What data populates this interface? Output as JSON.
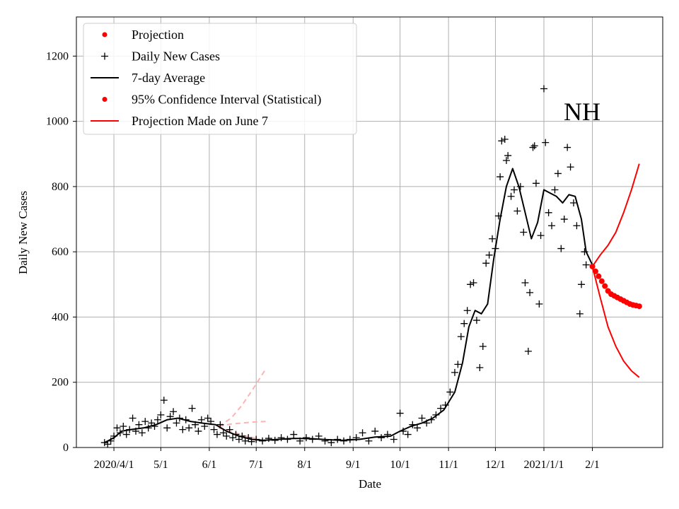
{
  "chart_data": {
    "type": "line",
    "annotation": "NH",
    "xlabel": "Date",
    "ylabel": "Daily New Cases",
    "xlim": [
      "2020-03-08",
      "2021-03-18"
    ],
    "ylim": [
      0,
      1320
    ],
    "grid": true,
    "legend_position": "top-left",
    "x_ticks": [
      {
        "date": "2020-04-01",
        "label": "2020/4/1"
      },
      {
        "date": "2020-05-01",
        "label": "5/1"
      },
      {
        "date": "2020-06-01",
        "label": "6/1"
      },
      {
        "date": "2020-07-01",
        "label": "7/1"
      },
      {
        "date": "2020-08-01",
        "label": "8/1"
      },
      {
        "date": "2020-09-01",
        "label": "9/1"
      },
      {
        "date": "2020-10-01",
        "label": "10/1"
      },
      {
        "date": "2020-11-01",
        "label": "11/1"
      },
      {
        "date": "2020-12-01",
        "label": "12/1"
      },
      {
        "date": "2021-01-01",
        "label": "2021/1/1"
      },
      {
        "date": "2021-02-01",
        "label": "2/1"
      }
    ],
    "y_ticks": [
      0,
      200,
      400,
      600,
      800,
      1000,
      1200
    ],
    "legend": [
      {
        "label": "Projection",
        "marker": "dot",
        "color": "#ff0000"
      },
      {
        "label": "Daily New Cases",
        "marker": "plus",
        "color": "#000000"
      },
      {
        "label": "7-day Average",
        "marker": "line",
        "color": "#000000"
      },
      {
        "label": "95% Confidence Interval (Statistical)",
        "marker": "dot",
        "color": "#ff0000"
      },
      {
        "label": "Projection Made on June 7",
        "marker": "line",
        "color": "#ff0000"
      }
    ],
    "series": [
      {
        "name": "Daily New Cases",
        "style": "plus-marker",
        "color": "#000000",
        "points": [
          [
            "2020-03-26",
            15
          ],
          [
            "2020-03-28",
            10
          ],
          [
            "2020-03-30",
            20
          ],
          [
            "2020-04-01",
            35
          ],
          [
            "2020-04-03",
            60
          ],
          [
            "2020-04-05",
            45
          ],
          [
            "2020-04-07",
            65
          ],
          [
            "2020-04-09",
            40
          ],
          [
            "2020-04-11",
            55
          ],
          [
            "2020-04-13",
            90
          ],
          [
            "2020-04-15",
            50
          ],
          [
            "2020-04-17",
            70
          ],
          [
            "2020-04-19",
            45
          ],
          [
            "2020-04-21",
            80
          ],
          [
            "2020-04-23",
            60
          ],
          [
            "2020-04-25",
            75
          ],
          [
            "2020-04-27",
            65
          ],
          [
            "2020-04-29",
            85
          ],
          [
            "2020-05-01",
            100
          ],
          [
            "2020-05-03",
            145
          ],
          [
            "2020-05-05",
            60
          ],
          [
            "2020-05-07",
            95
          ],
          [
            "2020-05-09",
            110
          ],
          [
            "2020-05-11",
            75
          ],
          [
            "2020-05-13",
            90
          ],
          [
            "2020-05-15",
            55
          ],
          [
            "2020-05-17",
            85
          ],
          [
            "2020-05-19",
            60
          ],
          [
            "2020-05-21",
            120
          ],
          [
            "2020-05-23",
            70
          ],
          [
            "2020-05-25",
            50
          ],
          [
            "2020-05-27",
            85
          ],
          [
            "2020-05-29",
            65
          ],
          [
            "2020-05-31",
            90
          ],
          [
            "2020-06-02",
            80
          ],
          [
            "2020-06-04",
            55
          ],
          [
            "2020-06-06",
            40
          ],
          [
            "2020-06-08",
            70
          ],
          [
            "2020-06-10",
            45
          ],
          [
            "2020-06-12",
            35
          ],
          [
            "2020-06-14",
            55
          ],
          [
            "2020-06-16",
            30
          ],
          [
            "2020-06-18",
            40
          ],
          [
            "2020-06-20",
            25
          ],
          [
            "2020-06-22",
            35
          ],
          [
            "2020-06-24",
            20
          ],
          [
            "2020-06-26",
            30
          ],
          [
            "2020-06-28",
            18
          ],
          [
            "2020-07-01",
            25
          ],
          [
            "2020-07-05",
            20
          ],
          [
            "2020-07-09",
            28
          ],
          [
            "2020-07-13",
            22
          ],
          [
            "2020-07-17",
            30
          ],
          [
            "2020-07-21",
            25
          ],
          [
            "2020-07-25",
            40
          ],
          [
            "2020-07-29",
            20
          ],
          [
            "2020-08-02",
            30
          ],
          [
            "2020-08-06",
            25
          ],
          [
            "2020-08-10",
            35
          ],
          [
            "2020-08-14",
            20
          ],
          [
            "2020-08-18",
            15
          ],
          [
            "2020-08-22",
            25
          ],
          [
            "2020-08-26",
            20
          ],
          [
            "2020-08-30",
            25
          ],
          [
            "2020-09-03",
            30
          ],
          [
            "2020-09-07",
            45
          ],
          [
            "2020-09-11",
            20
          ],
          [
            "2020-09-15",
            50
          ],
          [
            "2020-09-19",
            30
          ],
          [
            "2020-09-23",
            40
          ],
          [
            "2020-09-27",
            25
          ],
          [
            "2020-10-01",
            105
          ],
          [
            "2020-10-03",
            50
          ],
          [
            "2020-10-06",
            40
          ],
          [
            "2020-10-09",
            70
          ],
          [
            "2020-10-12",
            60
          ],
          [
            "2020-10-15",
            90
          ],
          [
            "2020-10-18",
            75
          ],
          [
            "2020-10-21",
            85
          ],
          [
            "2020-10-24",
            100
          ],
          [
            "2020-10-27",
            120
          ],
          [
            "2020-10-30",
            130
          ],
          [
            "2020-11-02",
            170
          ],
          [
            "2020-11-05",
            230
          ],
          [
            "2020-11-07",
            255
          ],
          [
            "2020-11-09",
            340
          ],
          [
            "2020-11-11",
            380
          ],
          [
            "2020-11-13",
            420
          ],
          [
            "2020-11-15",
            500
          ],
          [
            "2020-11-17",
            505
          ],
          [
            "2020-11-19",
            390
          ],
          [
            "2020-11-21",
            245
          ],
          [
            "2020-11-23",
            310
          ],
          [
            "2020-11-25",
            565
          ],
          [
            "2020-11-27",
            590
          ],
          [
            "2020-11-29",
            640
          ],
          [
            "2020-12-01",
            610
          ],
          [
            "2020-12-03",
            710
          ],
          [
            "2020-12-04",
            830
          ],
          [
            "2020-12-05",
            940
          ],
          [
            "2020-12-07",
            945
          ],
          [
            "2020-12-08",
            880
          ],
          [
            "2020-12-09",
            895
          ],
          [
            "2020-12-11",
            770
          ],
          [
            "2020-12-13",
            790
          ],
          [
            "2020-12-15",
            725
          ],
          [
            "2020-12-17",
            800
          ],
          [
            "2020-12-19",
            660
          ],
          [
            "2020-12-20",
            505
          ],
          [
            "2020-12-22",
            295
          ],
          [
            "2020-12-23",
            475
          ],
          [
            "2020-12-25",
            920
          ],
          [
            "2020-12-26",
            925
          ],
          [
            "2020-12-27",
            810
          ],
          [
            "2020-12-29",
            440
          ],
          [
            "2020-12-30",
            650
          ],
          [
            "2021-01-01",
            1100
          ],
          [
            "2021-01-02",
            935
          ],
          [
            "2021-01-04",
            720
          ],
          [
            "2021-01-06",
            680
          ],
          [
            "2021-01-08",
            790
          ],
          [
            "2021-01-10",
            840
          ],
          [
            "2021-01-12",
            610
          ],
          [
            "2021-01-14",
            700
          ],
          [
            "2021-01-16",
            920
          ],
          [
            "2021-01-18",
            860
          ],
          [
            "2021-01-20",
            750
          ],
          [
            "2021-01-22",
            680
          ],
          [
            "2021-01-24",
            410
          ],
          [
            "2021-01-25",
            500
          ],
          [
            "2021-01-27",
            600
          ],
          [
            "2021-01-28",
            560
          ]
        ]
      },
      {
        "name": "7-day Average",
        "style": "line",
        "color": "#000000",
        "points": [
          [
            "2020-03-26",
            15
          ],
          [
            "2020-04-01",
            30
          ],
          [
            "2020-04-06",
            50
          ],
          [
            "2020-04-12",
            55
          ],
          [
            "2020-04-20",
            60
          ],
          [
            "2020-04-28",
            70
          ],
          [
            "2020-05-05",
            85
          ],
          [
            "2020-05-12",
            90
          ],
          [
            "2020-05-20",
            80
          ],
          [
            "2020-05-27",
            75
          ],
          [
            "2020-06-05",
            70
          ],
          [
            "2020-06-12",
            50
          ],
          [
            "2020-06-20",
            35
          ],
          [
            "2020-06-28",
            25
          ],
          [
            "2020-07-05",
            22
          ],
          [
            "2020-07-15",
            25
          ],
          [
            "2020-07-25",
            28
          ],
          [
            "2020-08-05",
            27
          ],
          [
            "2020-08-15",
            24
          ],
          [
            "2020-08-25",
            22
          ],
          [
            "2020-09-05",
            25
          ],
          [
            "2020-09-15",
            32
          ],
          [
            "2020-09-25",
            35
          ],
          [
            "2020-10-01",
            50
          ],
          [
            "2020-10-08",
            65
          ],
          [
            "2020-10-15",
            75
          ],
          [
            "2020-10-22",
            90
          ],
          [
            "2020-10-29",
            115
          ],
          [
            "2020-11-05",
            170
          ],
          [
            "2020-11-10",
            260
          ],
          [
            "2020-11-14",
            370
          ],
          [
            "2020-11-18",
            420
          ],
          [
            "2020-11-22",
            410
          ],
          [
            "2020-11-26",
            440
          ],
          [
            "2020-11-30",
            580
          ],
          [
            "2020-12-04",
            700
          ],
          [
            "2020-12-08",
            800
          ],
          [
            "2020-12-12",
            855
          ],
          [
            "2020-12-16",
            800
          ],
          [
            "2020-12-20",
            720
          ],
          [
            "2020-12-24",
            640
          ],
          [
            "2020-12-28",
            690
          ],
          [
            "2021-01-01",
            790
          ],
          [
            "2021-01-05",
            780
          ],
          [
            "2021-01-09",
            770
          ],
          [
            "2021-01-13",
            750
          ],
          [
            "2021-01-17",
            775
          ],
          [
            "2021-01-21",
            770
          ],
          [
            "2021-01-25",
            700
          ],
          [
            "2021-01-28",
            600
          ],
          [
            "2021-02-01",
            560
          ]
        ]
      },
      {
        "name": "Projection",
        "style": "dot-marker",
        "color": "#ff0000",
        "points": [
          [
            "2021-02-01",
            555
          ],
          [
            "2021-02-03",
            540
          ],
          [
            "2021-02-05",
            525
          ],
          [
            "2021-02-07",
            510
          ],
          [
            "2021-02-09",
            495
          ],
          [
            "2021-02-11",
            480
          ],
          [
            "2021-02-13",
            470
          ],
          [
            "2021-02-15",
            465
          ],
          [
            "2021-02-17",
            460
          ],
          [
            "2021-02-19",
            455
          ],
          [
            "2021-02-21",
            450
          ],
          [
            "2021-02-23",
            445
          ],
          [
            "2021-02-25",
            440
          ],
          [
            "2021-02-27",
            437
          ],
          [
            "2021-03-01",
            435
          ],
          [
            "2021-03-03",
            433
          ]
        ]
      },
      {
        "name": "95% Confidence Interval (Statistical)",
        "style": "line",
        "color": "#ff0000",
        "upper": [
          [
            "2021-02-01",
            555
          ],
          [
            "2021-02-06",
            590
          ],
          [
            "2021-02-11",
            620
          ],
          [
            "2021-02-16",
            660
          ],
          [
            "2021-02-21",
            720
          ],
          [
            "2021-02-26",
            790
          ],
          [
            "2021-03-03",
            870
          ]
        ],
        "lower": [
          [
            "2021-02-01",
            555
          ],
          [
            "2021-02-06",
            460
          ],
          [
            "2021-02-11",
            370
          ],
          [
            "2021-02-16",
            310
          ],
          [
            "2021-02-21",
            265
          ],
          [
            "2021-02-26",
            235
          ],
          [
            "2021-03-03",
            215
          ]
        ]
      },
      {
        "name": "Projection Made on June 7",
        "style": "dashed-line",
        "color": "#ffb3b3",
        "center": [
          [
            "2020-06-07",
            60
          ],
          [
            "2020-06-15",
            50
          ],
          [
            "2020-06-22",
            38
          ],
          [
            "2020-06-29",
            30
          ],
          [
            "2020-07-07",
            20
          ]
        ],
        "upper": [
          [
            "2020-06-07",
            65
          ],
          [
            "2020-06-15",
            90
          ],
          [
            "2020-06-22",
            130
          ],
          [
            "2020-06-29",
            180
          ],
          [
            "2020-07-07",
            240
          ]
        ],
        "lower": [
          [
            "2020-06-07",
            65
          ],
          [
            "2020-06-15",
            72
          ],
          [
            "2020-06-22",
            75
          ],
          [
            "2020-06-29",
            78
          ],
          [
            "2020-07-07",
            80
          ]
        ]
      }
    ]
  }
}
